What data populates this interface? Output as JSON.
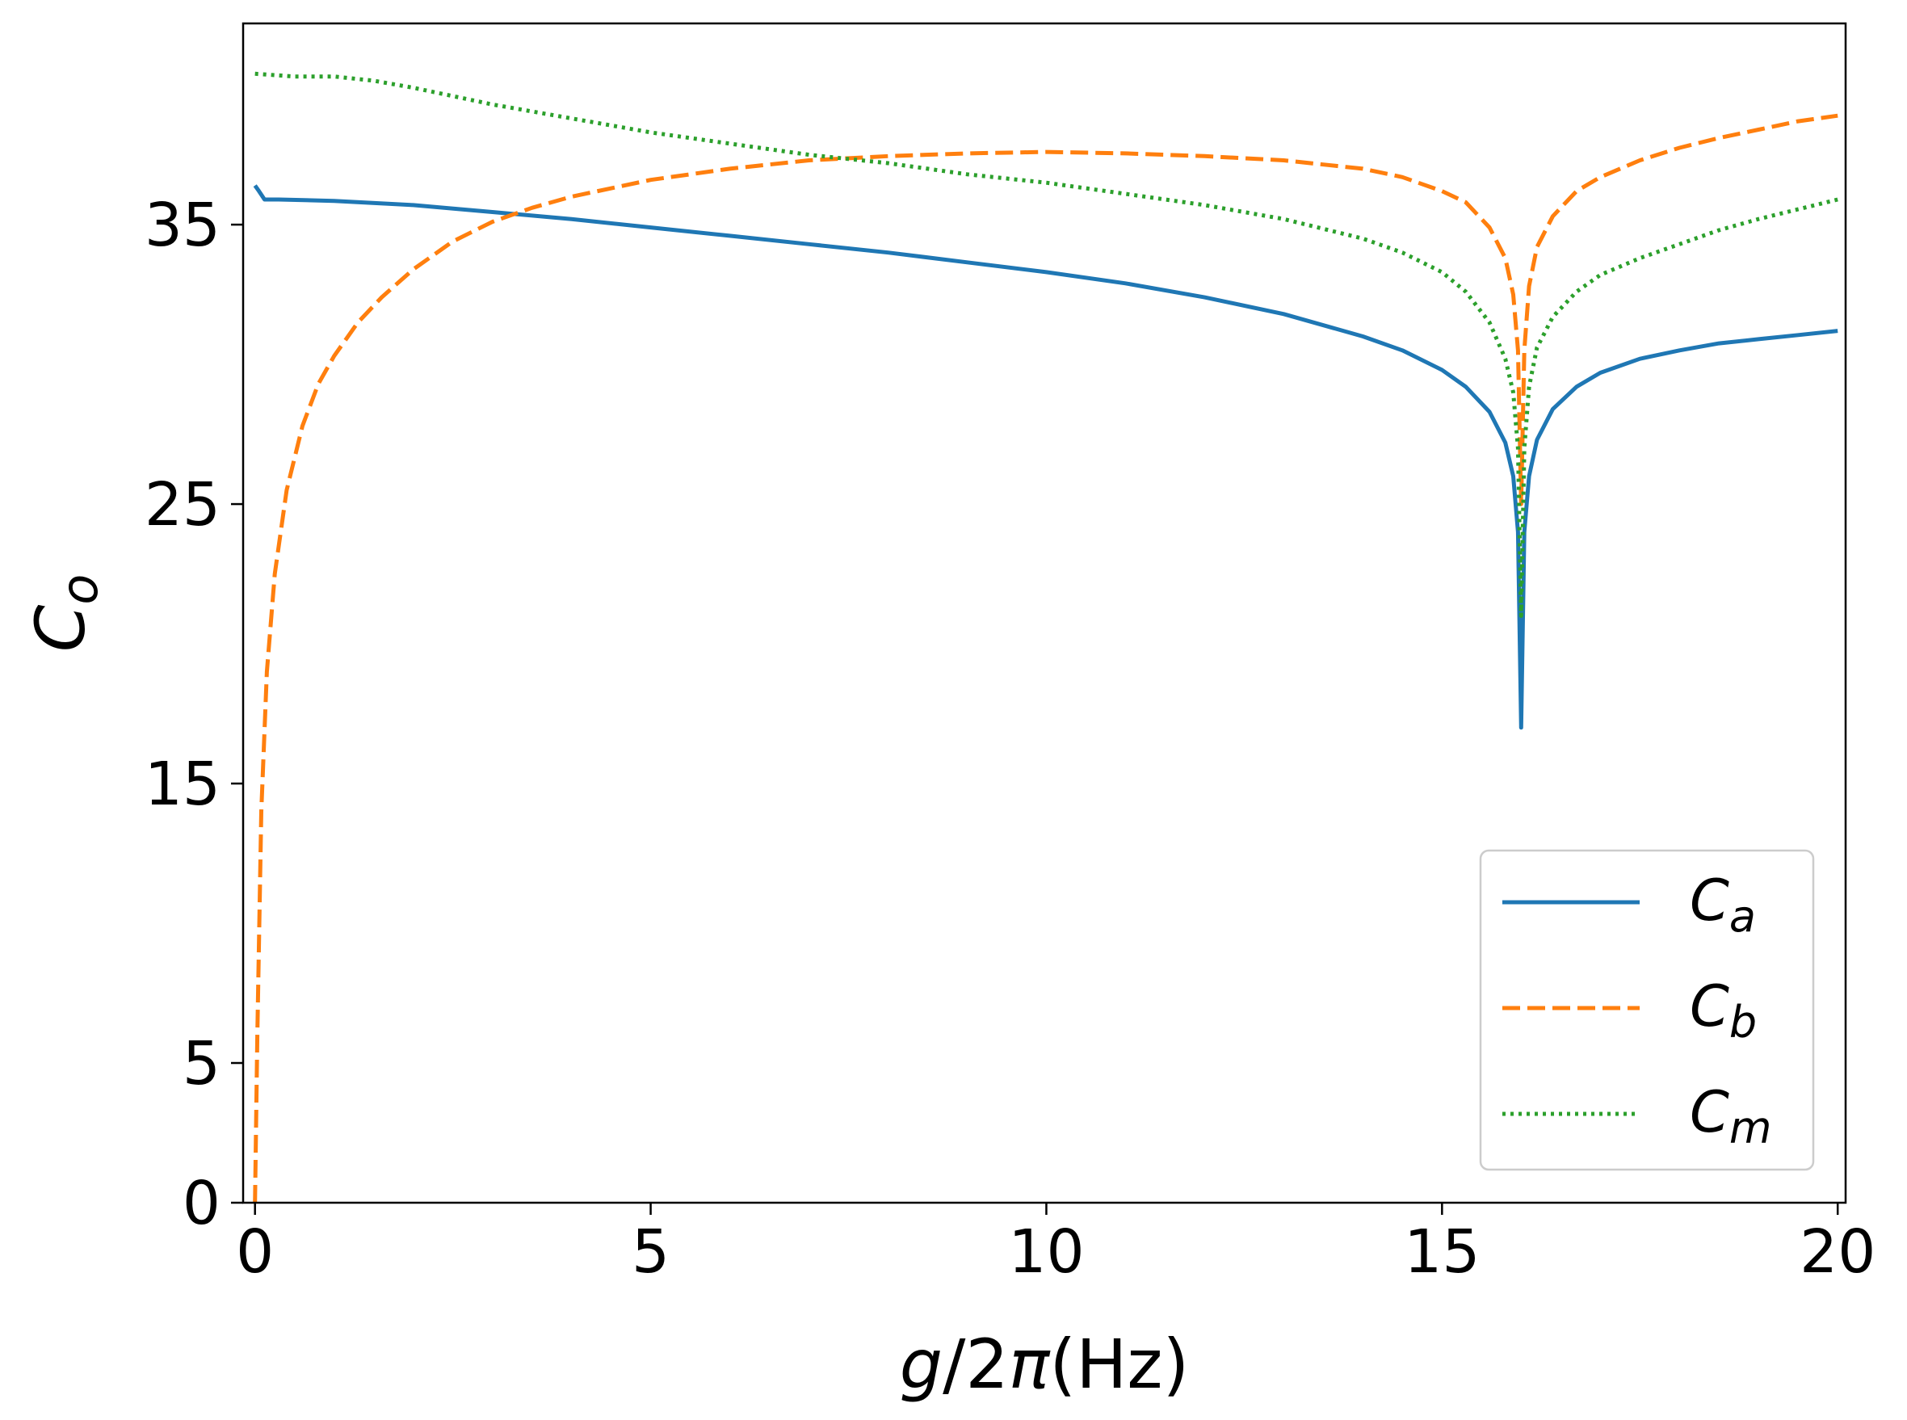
{
  "chart_data": {
    "type": "line",
    "xlabel": {
      "var": "g",
      "rest": "/2",
      "pi": "π",
      "unit": "(Hz)"
    },
    "ylabel": {
      "base": "C",
      "sub": "o"
    },
    "xlim": [
      -0.15,
      20.1
    ],
    "ylim": [
      0,
      42.2
    ],
    "xticks": [
      0,
      5,
      10,
      15,
      20
    ],
    "xtick_labels": [
      "0",
      "5",
      "10",
      "15",
      "20"
    ],
    "yticks": [
      0,
      5,
      15,
      25,
      35
    ],
    "ytick_labels": [
      "0",
      "5",
      "15",
      "25",
      "35"
    ],
    "grid": false,
    "legend_position": "lower-right",
    "series": [
      {
        "name": {
          "base": "C",
          "sub": "a"
        },
        "color": "#1f77b4",
        "style": "solid",
        "x": [
          0.0,
          0.05,
          0.12,
          0.3,
          1,
          2,
          3,
          4,
          5,
          6,
          7,
          8,
          9,
          10,
          11,
          12,
          13,
          14,
          14.5,
          15,
          15.3,
          15.6,
          15.8,
          15.9,
          15.96,
          16.0,
          16.04,
          16.1,
          16.2,
          16.4,
          16.7,
          17,
          17.5,
          18,
          18.5,
          19,
          19.5,
          20
        ],
        "y": [
          36.4,
          36.2,
          35.9,
          35.9,
          35.85,
          35.7,
          35.45,
          35.2,
          34.9,
          34.6,
          34.3,
          34.0,
          33.65,
          33.3,
          32.9,
          32.4,
          31.8,
          31.0,
          30.5,
          29.8,
          29.2,
          28.3,
          27.2,
          26.0,
          24.0,
          17.0,
          24.0,
          26.0,
          27.3,
          28.4,
          29.2,
          29.7,
          30.2,
          30.5,
          30.75,
          30.9,
          31.05,
          31.2
        ]
      },
      {
        "name": {
          "base": "C",
          "sub": "b"
        },
        "color": "#ff7f0e",
        "style": "dashed",
        "x": [
          0.0,
          0.03,
          0.08,
          0.15,
          0.25,
          0.4,
          0.6,
          0.8,
          1,
          1.3,
          1.6,
          2,
          2.5,
          3,
          3.5,
          4,
          5,
          6,
          7,
          8,
          9,
          10,
          11,
          12,
          13,
          14,
          14.5,
          15,
          15.3,
          15.6,
          15.8,
          15.9,
          15.96,
          16.0,
          16.04,
          16.1,
          16.2,
          16.4,
          16.7,
          17,
          17.5,
          18,
          18.5,
          19,
          19.5,
          20
        ],
        "y": [
          0.0,
          6.0,
          14.0,
          19.0,
          22.5,
          25.5,
          27.8,
          29.3,
          30.3,
          31.5,
          32.4,
          33.4,
          34.4,
          35.1,
          35.6,
          36.0,
          36.6,
          37.0,
          37.3,
          37.45,
          37.55,
          37.6,
          37.55,
          37.45,
          37.3,
          37.0,
          36.7,
          36.2,
          35.8,
          34.9,
          33.8,
          32.5,
          30.5,
          25.0,
          30.5,
          32.8,
          34.2,
          35.3,
          36.2,
          36.7,
          37.3,
          37.75,
          38.1,
          38.4,
          38.7,
          38.9
        ]
      },
      {
        "name": {
          "base": "C",
          "sub": "m"
        },
        "color": "#2ca02c",
        "style": "dotted",
        "x": [
          0.0,
          0.5,
          1,
          1.5,
          2,
          3,
          4,
          5,
          6,
          7,
          8,
          9,
          10,
          11,
          12,
          13,
          14,
          14.5,
          15,
          15.3,
          15.6,
          15.8,
          15.9,
          15.96,
          16.0,
          16.04,
          16.1,
          16.2,
          16.4,
          16.7,
          17,
          17.5,
          18,
          18.5,
          19,
          19.5,
          20
        ],
        "y": [
          40.4,
          40.3,
          40.3,
          40.15,
          39.9,
          39.3,
          38.8,
          38.3,
          37.9,
          37.5,
          37.2,
          36.8,
          36.5,
          36.1,
          35.7,
          35.2,
          34.5,
          34.0,
          33.3,
          32.6,
          31.5,
          30.2,
          29.0,
          27.0,
          21.0,
          27.0,
          29.2,
          30.6,
          31.7,
          32.6,
          33.2,
          33.8,
          34.3,
          34.8,
          35.2,
          35.55,
          35.9
        ]
      }
    ]
  }
}
